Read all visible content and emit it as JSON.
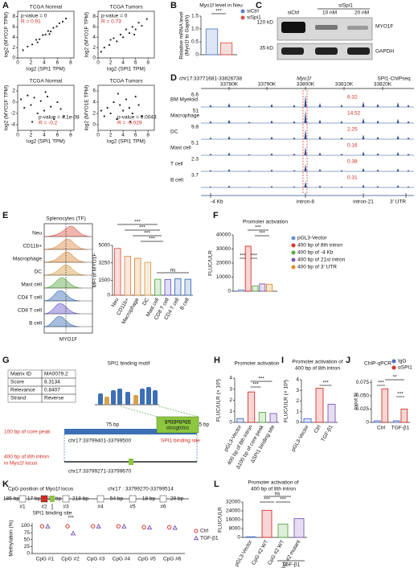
{
  "panel_labels": [
    "A",
    "B",
    "C",
    "D",
    "E",
    "F",
    "G",
    "H",
    "I",
    "J",
    "K",
    "L"
  ],
  "blot": {
    "condition": "siSpi1",
    "lanes": [
      "siCtrl",
      "10 nM",
      "20 nM"
    ],
    "markers": [
      "120 kD",
      "35 kD"
    ],
    "proteins": [
      "MYO1F",
      "GAPDH"
    ]
  },
  "tracks": {
    "region": "chr17:33771681-33826738",
    "gene": "Myo1f",
    "source": "SPI1-ChIPseq",
    "coordinates": [
      "33780K",
      "33790K",
      "33800K",
      "33810K",
      "33820K"
    ],
    "rows": [
      {
        "name": "BM Myeloid",
        "scale": "6.6",
        "value": "6.32"
      },
      {
        "name": "Macrophage",
        "scale": "51",
        "value": "14.52"
      },
      {
        "name": "DC",
        "scale": "9.8",
        "value": "2.25"
      },
      {
        "name": "Mast cell",
        "scale": "5.1",
        "value": "0.16"
      },
      {
        "name": "T cell",
        "scale": "2.3",
        "value": "0.38"
      },
      {
        "name": "B cell",
        "scale": "3.7",
        "value": "0.31"
      }
    ],
    "features": [
      "-4 Kb",
      "intron-8",
      "intron-21",
      "3' UTR"
    ]
  },
  "flow": {
    "title": "Splenocytes (TF)",
    "x_label": "MYO1F",
    "rows": [
      "Neu",
      "CD11b+",
      "Macrophage",
      "DC",
      "Mast cell",
      "CD4 T cell",
      "CD8 T cell",
      "B cell"
    ],
    "colors": [
      "#e05a4a",
      "#e0894a",
      "#d98a3a",
      "#d9a04a",
      "#5aa845",
      "#3c6fb6",
      "#6a5acd",
      "#3c6fb6"
    ]
  },
  "motif": {
    "table": [
      [
        "Matrix ID",
        "MA0079.2"
      ],
      [
        "Score",
        "8.3134"
      ],
      [
        "Relevance",
        "0.8407"
      ],
      [
        "Strand",
        "Reverse"
      ]
    ],
    "title": "SPI1 binding motif",
    "left_gap": "75 bp",
    "right_gap": "15 bp",
    "core": "100 bp of core peak",
    "core_region": "chr17:33799401-33799500",
    "site_seq": [
      "gaggagagg",
      "ctccgtctcc"
    ],
    "site": "SPI1 binding site",
    "intron": [
      "400 bp of 8th intron",
      "in Myo1f locus"
    ],
    "intron_region": "chr17:33799271-33799670"
  },
  "cpg_map": {
    "title": "CpG position of Myo1f locus",
    "region": "chr17 : 33799270-33799514",
    "lengths": [
      "185 bp",
      "17 bp",
      "38 bp",
      "218 bp",
      "54 bp",
      "18 bp",
      "29 bp"
    ],
    "sites": [
      "#1",
      "#2",
      "#3",
      "#4",
      "#5",
      "#6"
    ],
    "note": "SPI1 binding site"
  },
  "chart_data": [
    {
      "type": "scatter",
      "title": "TCGA Normal",
      "stats": [
        "p-value = 0",
        "R = 0.91"
      ],
      "x_label": "log2 (SPI1 TPM)",
      "y_label": "log2 (MYO1F TPM)",
      "xlim": [
        0,
        8.5
      ],
      "ylim": [
        0,
        9
      ],
      "xticks": [
        0,
        2,
        4,
        6,
        8
      ],
      "yticks": [
        0,
        2,
        4,
        6,
        8
      ],
      "color": "#222222",
      "x": [
        0.8,
        1.5,
        2.2,
        2.8,
        3.3,
        3.8,
        4.2,
        4.6,
        5.0,
        5.4,
        5.9,
        6.3,
        6.8,
        7.3,
        4.8,
        3.0
      ],
      "y": [
        1.5,
        2.2,
        2.6,
        3.5,
        3.6,
        4.4,
        4.5,
        5.2,
        5.1,
        5.8,
        6.1,
        6.7,
        7.0,
        7.6,
        4.6,
        3.0
      ]
    },
    {
      "type": "scatter",
      "title": "TCGA Tumors",
      "stats": [
        "p-value = 0",
        "R = 0.73"
      ],
      "x_label": "log2 (SPI1 TPM)",
      "y_label": "log2 (MYO1F TPM)",
      "xlim": [
        0,
        9
      ],
      "ylim": [
        0,
        9
      ],
      "xticks": [
        0,
        2,
        4,
        6,
        8
      ],
      "yticks": [
        0,
        2,
        4,
        6,
        8
      ],
      "color": "#222222",
      "x": [
        0.5,
        1.0,
        1.8,
        2.5,
        3.0,
        3.6,
        4.0,
        4.5,
        5.0,
        5.5,
        6.0,
        6.5,
        7.0,
        7.8,
        2.0,
        5.8
      ],
      "y": [
        1.2,
        2.0,
        2.5,
        3.8,
        3.2,
        4.5,
        4.0,
        5.5,
        4.8,
        6.0,
        5.5,
        6.8,
        6.2,
        7.5,
        3.5,
        4.5
      ]
    },
    {
      "type": "scatter",
      "title": "TCGA Normal",
      "stats": [
        "p-value = 4.1e-08",
        "R = -0.2"
      ],
      "x_label": "log2 (SPI1 TPM)",
      "y_label": "log2 (MYO1F TPM)",
      "xlim": [
        0,
        8.5
      ],
      "ylim": [
        -5,
        3
      ],
      "xticks": [
        0,
        2,
        4,
        6,
        8
      ],
      "yticks": [
        -4,
        -2,
        0,
        2
      ],
      "color": "#222222",
      "x": [
        0.5,
        1.0,
        1.5,
        2.0,
        2.5,
        3.0,
        3.5,
        4.0,
        4.5,
        5.0,
        5.5,
        6.0,
        6.5,
        7.0,
        2.2,
        4.2
      ],
      "y": [
        0.5,
        -1.0,
        1.2,
        -0.5,
        0.8,
        -2.0,
        0.2,
        -1.5,
        1.0,
        -0.8,
        -3.0,
        0.0,
        -1.2,
        -2.5,
        -3.5,
        1.8
      ]
    },
    {
      "type": "scatter",
      "title": "TCGA Tumors",
      "stats": [
        "p-value = 0.0043",
        "R = -0.029"
      ],
      "x_label": "log2 (SPI1 TPM)",
      "y_label": "log2 (MYO1E TPM)",
      "xlim": [
        0,
        9
      ],
      "ylim": [
        -1,
        7
      ],
      "xticks": [
        0,
        2,
        4,
        6,
        8
      ],
      "yticks": [
        0,
        2,
        4,
        6
      ],
      "color": "#222222",
      "x": [
        0.5,
        1.0,
        1.5,
        2.0,
        2.5,
        3.0,
        3.5,
        4.0,
        4.5,
        5.0,
        5.5,
        6.0,
        6.5,
        7.0,
        3.2,
        5.2
      ],
      "y": [
        2.5,
        1.5,
        3.0,
        2.0,
        4.0,
        1.0,
        3.5,
        2.5,
        4.5,
        3.0,
        2.0,
        5.0,
        3.5,
        1.5,
        5.5,
        0.5
      ]
    },
    {
      "type": "bar",
      "title": "Myo1f level in Neu",
      "y_label": [
        "Relative mRNA level",
        "(Myo1f to Gapdh)"
      ],
      "ylim": [
        0,
        1.5
      ],
      "yticks": [
        0,
        0.5,
        {
          "value": 1,
          "label": "1.0"
        },
        1.5
      ],
      "categories": [
        null
      ],
      "series": [
        {
          "name": "siCtrl",
          "color": "#5b7fc7",
          "values": [
            1.0
          ]
        },
        {
          "name": "siSpi1",
          "color": "#d9534f",
          "values": [
            0.46
          ]
        }
      ],
      "annotations": [
        "***"
      ]
    },
    {
      "type": "bar",
      "y_label": "MFI of MYO1F",
      "ylim": [
        0,
        5000
      ],
      "yticks": [
        0,
        1500,
        3250,
        5000
      ],
      "categories": [
        "Neu",
        "CD11b+",
        "Macrophage",
        "DC",
        "Mast cell",
        "CD8 T cell",
        "CD4 T cell",
        "B cell"
      ],
      "values": [
        4700,
        3900,
        3700,
        3300,
        1600,
        1580,
        1650,
        1600
      ],
      "colors": [
        "#e05a4a",
        "#e0894a",
        "#d98a3a",
        "#d9a04a",
        "#5aa845",
        "#6a5acd",
        "#3c6fb6",
        "#3c6fb6"
      ],
      "annotations": [
        "***",
        "***",
        "***",
        "***",
        "ns"
      ]
    },
    {
      "type": "bar",
      "title": "Promoter activation",
      "y_label": "FLUC/ULR",
      "ylim": [
        0,
        40000
      ],
      "yticks": [
        0,
        10000,
        20000,
        30000,
        40000
      ],
      "categories": [
        null
      ],
      "series": [
        {
          "name": "pGL3-Vector",
          "color": "#6a8fd0",
          "values": [
            1000
          ]
        },
        {
          "name": "400 bp of 8th intron",
          "color": "#d9342b",
          "values": [
            32000
          ]
        },
        {
          "name": "400 bp of -4 Kb",
          "color": "#5aa845",
          "values": [
            3800
          ]
        },
        {
          "name": "400 bp of 21st intron",
          "color": "#7b5bb6",
          "values": [
            5200
          ]
        },
        {
          "name": "400 bp of 3' UTR",
          "color": "#e08a2a",
          "values": [
            5000
          ]
        }
      ],
      "annotations": [
        "***",
        "***",
        "***",
        "***"
      ]
    },
    {
      "type": "bar",
      "title": "Promoter activation",
      "y_label": "FLUC/ULR (× 10³)",
      "ylim": [
        0,
        4
      ],
      "yticks": [
        0,
        1,
        2,
        3,
        4
      ],
      "categories": [
        "pGL3-Vector",
        "400 bp of 8th intron",
        "Δ100 bp of core peak",
        "ΔSPI1 binding site"
      ],
      "values": [
        0.35,
        2.75,
        0.9,
        0.8
      ],
      "colors": [
        "#4f6fc2",
        "#d9342b",
        "#5aa845",
        "#7b5bb6"
      ],
      "annotations": [
        "***",
        "***"
      ]
    },
    {
      "type": "bar",
      "title": [
        "Promoter activation of",
        "400 bp of 8th intron"
      ],
      "y_label": "FLUC/ULR (× 10³)",
      "ylim": [
        0,
        4
      ],
      "yticks": [
        0,
        1,
        2,
        3,
        4
      ],
      "categories": [
        "pGL3-Vector",
        "Ctrl",
        "TGF-β1"
      ],
      "values": [
        0.35,
        3.2,
        1.7
      ],
      "colors": [
        "#4f6fc2",
        "#d9342b",
        "#7b5bb6"
      ],
      "annotations": [
        "***"
      ]
    },
    {
      "type": "bar",
      "title": "ChIP-qPCR",
      "y_label": "Input %",
      "ylim": [
        0,
        0.08
      ],
      "yticks": [
        0,
        0.025,
        {
          "value": 0.05,
          "label": "0.050"
        },
        0.075
      ],
      "categories": [
        "Ctrl",
        "TGF-β1"
      ],
      "series": [
        {
          "name": "IgG",
          "color": "#4f6fc2",
          "values": [
            0.003,
            0.003
          ]
        },
        {
          "name": "αSPI1",
          "color": "#d9342b",
          "values": [
            0.063,
            0.025
          ]
        }
      ],
      "annotations": [
        "***",
        "**",
        "***"
      ]
    },
    {
      "type": "dot",
      "y_label": "Methylation (%)",
      "ylim": [
        0,
        110
      ],
      "yticks": [
        0,
        25,
        50,
        75,
        100
      ],
      "categories": [
        "CpG #1",
        "CpG #2",
        "CpG #3",
        "CpG #4",
        "CpG #5",
        "CpG #6"
      ],
      "series": [
        {
          "name": "Ctrl",
          "color": "#d9342b",
          "values": [
            98,
            98,
            98,
            98,
            95,
            94
          ]
        },
        {
          "name": "TGF-β1",
          "color": "#7b5bb6",
          "values": [
            97,
            72,
            97,
            97,
            93,
            92
          ]
        }
      ],
      "annotations": [
        "***"
      ]
    },
    {
      "type": "bar",
      "title": [
        "Promoter activation of",
        "400 bp of 8th intron"
      ],
      "y_label": "FLUC/ULR",
      "ylim": [
        0,
        32000
      ],
      "yticks": [
        0,
        8000,
        16000,
        24000,
        32000
      ],
      "categories": [
        "pGL3-Vector",
        "CpG #2 WT",
        "CpG #2 WT",
        "CpG #2 mutant"
      ],
      "values": [
        600,
        24500,
        12000,
        17000
      ],
      "colors": [
        "#4f6fc2",
        "#d9342b",
        "#5aa845",
        "#7b5bb6"
      ],
      "group_label": "TGF-β1",
      "annotations": [
        "ns",
        "***",
        "***"
      ]
    }
  ]
}
